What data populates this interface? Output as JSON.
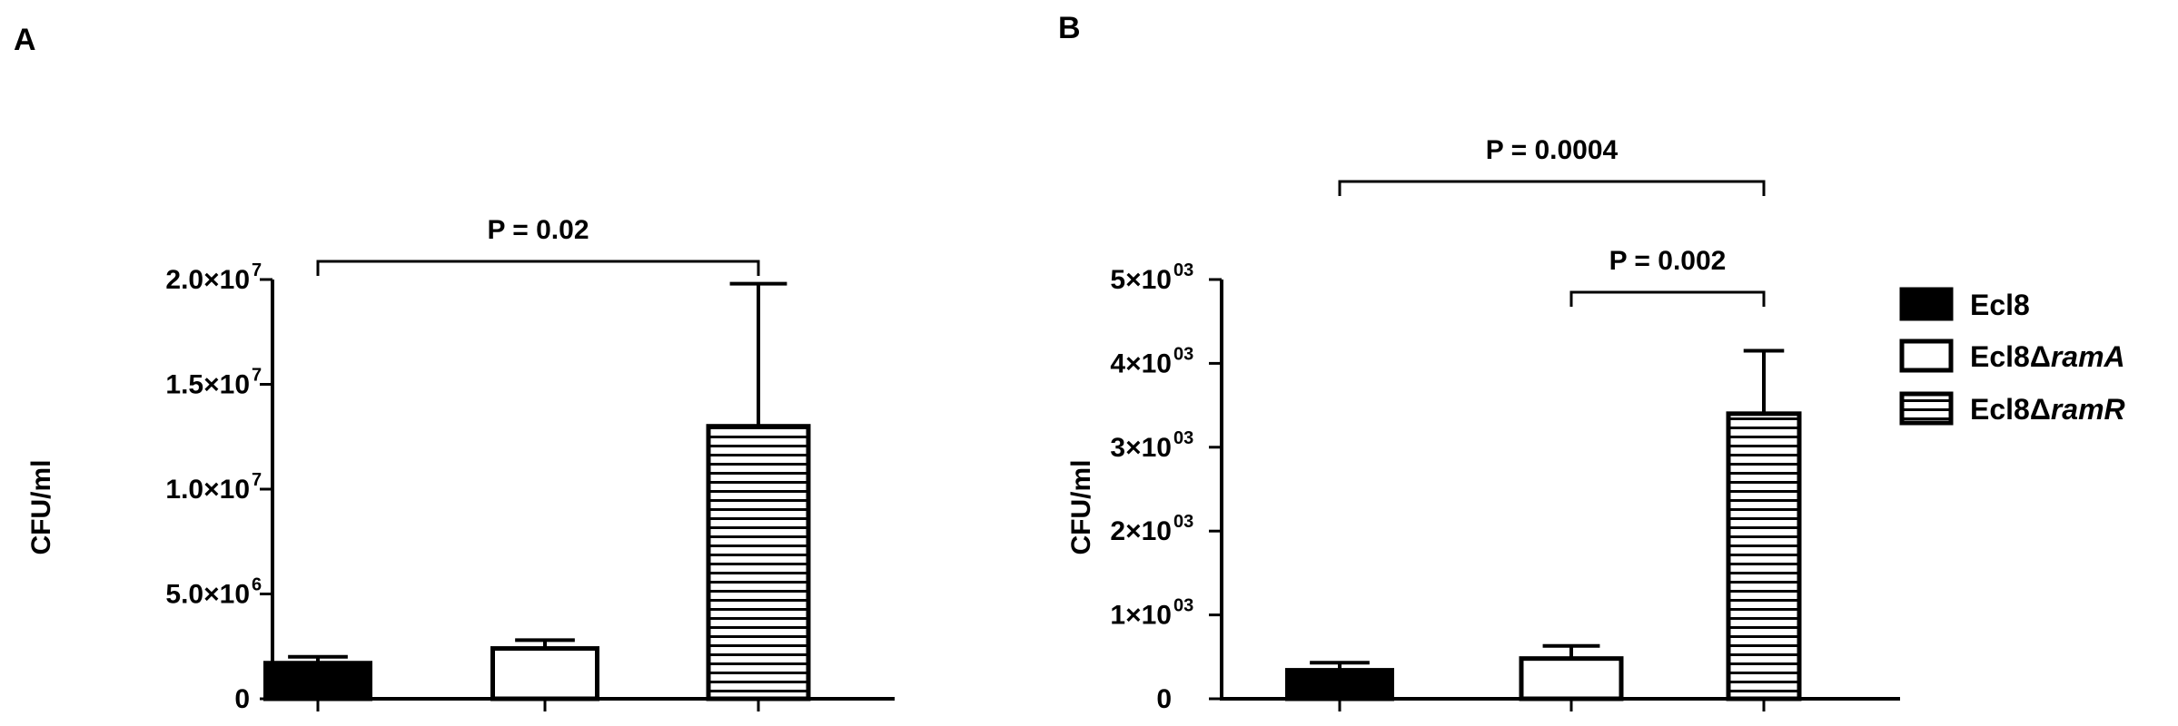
{
  "chart_data": [
    {
      "type": "bar",
      "panel": "A",
      "ylabel": "CFU/ml",
      "categories": [
        "Ecl8",
        "Ecl8ΔramA",
        "Ecl8ΔramR"
      ],
      "values": [
        1700000,
        2400000,
        13000000
      ],
      "errors": [
        300000,
        400000,
        6800000
      ],
      "ylim": [
        0,
        20000000
      ],
      "yticks": [
        {
          "value": 0,
          "label": "0",
          "sup": ""
        },
        {
          "value": 5000000,
          "label": "5.0×10",
          "sup": "6"
        },
        {
          "value": 10000000,
          "label": "1.0×10",
          "sup": "7"
        },
        {
          "value": 15000000,
          "label": "1.5×10",
          "sup": "7"
        },
        {
          "value": 20000000,
          "label": "2.0×10",
          "sup": "7"
        }
      ],
      "comparisons": [
        {
          "from": 0,
          "to": 2,
          "label": "P = 0.02"
        }
      ]
    },
    {
      "type": "bar",
      "panel": "B",
      "ylabel": "CFU/ml",
      "categories": [
        "Ecl8",
        "Ecl8ΔramA",
        "Ecl8ΔramR"
      ],
      "values": [
        340,
        480,
        3400
      ],
      "errors": [
        90,
        150,
        750
      ],
      "ylim": [
        0,
        5000
      ],
      "yticks": [
        {
          "value": 0,
          "label": "0",
          "sup": ""
        },
        {
          "value": 1000,
          "label": "1×10",
          "sup": "03"
        },
        {
          "value": 2000,
          "label": "2×10",
          "sup": "03"
        },
        {
          "value": 3000,
          "label": "3×10",
          "sup": "03"
        },
        {
          "value": 4000,
          "label": "4×10",
          "sup": "03"
        },
        {
          "value": 5000,
          "label": "5×10",
          "sup": "03"
        }
      ],
      "comparisons": [
        {
          "from": 1,
          "to": 2,
          "label": "P = 0.002"
        },
        {
          "from": 0,
          "to": 2,
          "label": "P = 0.0004"
        }
      ]
    }
  ],
  "legend": {
    "placement": "right",
    "entries": [
      {
        "label": "Ecl8",
        "label_main": "Ecl8Δ",
        "italic": "",
        "fill": "solid"
      },
      {
        "label": "Ecl8ΔramA",
        "label_main": "Ecl8Δ",
        "italic": "ramA",
        "fill": "open"
      },
      {
        "label": "Ecl8ΔramR",
        "label_main": "Ecl8Δ",
        "italic": "ramR",
        "fill": "striped"
      }
    ]
  },
  "colors": {
    "ink": "#000000",
    "background": "#ffffff"
  }
}
